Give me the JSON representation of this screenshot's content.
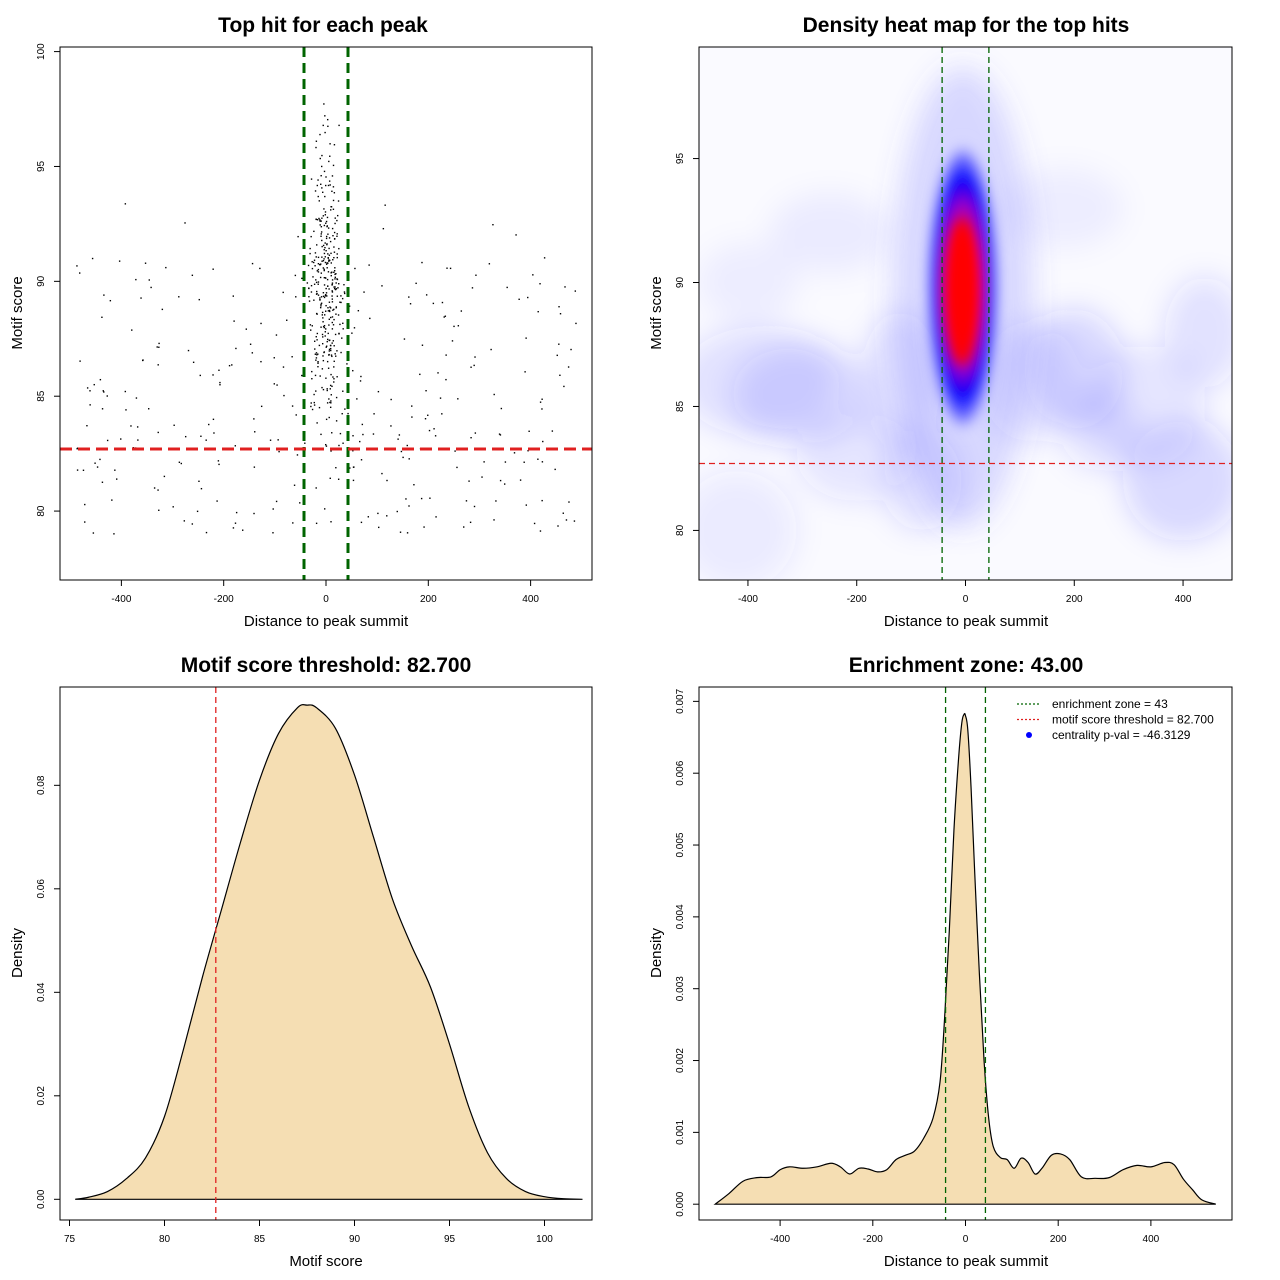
{
  "chart_data": [
    {
      "id": "scatter",
      "type": "scatter",
      "title": "Top hit for each peak",
      "xlabel": "Distance to peak summit",
      "ylabel": "Motif score",
      "xlim": [
        -520,
        520
      ],
      "ylim": [
        77,
        100.2
      ],
      "xticks": [
        -400,
        -200,
        0,
        200,
        400
      ],
      "yticks": [
        80,
        85,
        90,
        95,
        100
      ],
      "hline": 82.7,
      "vlines": [
        -43,
        43
      ],
      "hline_color": "#e02020",
      "vline_color": "#006400",
      "point_color": "#000000",
      "points_note": "Dense column of top hits around x=0 (score 84-99), sparser background across -500..500"
    },
    {
      "id": "heatmap",
      "type": "heatmap",
      "title": "Density heat map for the top hits",
      "xlabel": "Distance to peak summit",
      "ylabel": "Motif score",
      "xlim": [
        -490,
        490
      ],
      "ylim": [
        78,
        99.5
      ],
      "xticks": [
        -400,
        -200,
        0,
        200,
        400
      ],
      "yticks": [
        80,
        85,
        90,
        95
      ],
      "hline": 82.7,
      "vlines": [
        -43,
        43
      ],
      "colors": [
        "#ffffff",
        "#0000ff",
        "#ff0000"
      ],
      "peak": {
        "x": -5,
        "y": 89.8
      }
    },
    {
      "id": "score-density",
      "type": "area",
      "title": "Motif score threshold: 82.700",
      "xlabel": "Motif score",
      "ylabel": "Density",
      "xlim": [
        74.5,
        102.5
      ],
      "ylim": [
        -0.004,
        0.099
      ],
      "xticks": [
        75,
        80,
        85,
        90,
        95,
        100
      ],
      "yticks": [
        0.0,
        0.02,
        0.04,
        0.06,
        0.08
      ],
      "ytick_labels": [
        "0.00",
        "0.02",
        "0.04",
        "0.06",
        "0.08"
      ],
      "vline": 82.7,
      "fill": "#f5deb3",
      "x": [
        75.3,
        76,
        77,
        78,
        79,
        80,
        81,
        82,
        83,
        84,
        85,
        86,
        87,
        87.5,
        88,
        89,
        90,
        91,
        92,
        93,
        94,
        95,
        96,
        97,
        98,
        99,
        100,
        101,
        102
      ],
      "y": [
        0.0,
        0.0004,
        0.0015,
        0.004,
        0.008,
        0.016,
        0.029,
        0.043,
        0.056,
        0.069,
        0.081,
        0.09,
        0.095,
        0.0955,
        0.095,
        0.091,
        0.082,
        0.07,
        0.058,
        0.049,
        0.041,
        0.03,
        0.018,
        0.009,
        0.004,
        0.0015,
        0.0005,
        0.0001,
        0.0
      ]
    },
    {
      "id": "distance-density",
      "type": "area",
      "title": "Enrichment zone: 43.00",
      "xlabel": "Distance to peak summit",
      "ylabel": "Density",
      "xlim": [
        -575,
        575
      ],
      "ylim": [
        -0.00022,
        0.0072
      ],
      "xticks": [
        -400,
        -200,
        0,
        200,
        400
      ],
      "yticks": [
        0.0,
        0.001,
        0.002,
        0.003,
        0.004,
        0.005,
        0.006,
        0.007
      ],
      "ytick_labels": [
        "0.000",
        "0.001",
        "0.002",
        "0.003",
        "0.004",
        "0.005",
        "0.006",
        "0.007"
      ],
      "vlines": [
        -43,
        43
      ],
      "fill": "#f5deb3",
      "x": [
        -540,
        -510,
        -480,
        -450,
        -420,
        -400,
        -380,
        -350,
        -320,
        -290,
        -270,
        -250,
        -230,
        -210,
        -190,
        -170,
        -150,
        -130,
        -110,
        -90,
        -70,
        -55,
        -45,
        -35,
        -25,
        -15,
        -8,
        -3,
        0,
        5,
        12,
        20,
        30,
        40,
        50,
        60,
        75,
        90,
        105,
        120,
        135,
        150,
        165,
        185,
        205,
        225,
        250,
        280,
        310,
        340,
        370,
        400,
        430,
        450,
        470,
        490,
        510,
        540
      ],
      "y": [
        0.0,
        0.00015,
        0.00032,
        0.00037,
        0.00038,
        0.00048,
        0.00052,
        0.0005,
        0.00052,
        0.00057,
        0.00052,
        0.00042,
        0.0005,
        0.00049,
        0.00045,
        0.00048,
        0.00062,
        0.00068,
        0.00074,
        0.00092,
        0.0012,
        0.0017,
        0.0026,
        0.0038,
        0.0052,
        0.0062,
        0.0067,
        0.00682,
        0.0068,
        0.0066,
        0.0058,
        0.0046,
        0.0032,
        0.002,
        0.0012,
        0.0008,
        0.00065,
        0.00062,
        0.0005,
        0.00064,
        0.00058,
        0.00042,
        0.0005,
        0.00068,
        0.0007,
        0.00062,
        0.00038,
        0.00036,
        0.00037,
        0.00048,
        0.00054,
        0.00052,
        0.00058,
        0.00055,
        0.00035,
        0.0002,
        6e-05,
        0.0
      ],
      "legend": [
        {
          "label": "enrichment zone = 43",
          "color": "#006400",
          "kind": "line"
        },
        {
          "label": "motif score threshold = 82.700",
          "color": "#e02020",
          "kind": "line"
        },
        {
          "label": "centrality p-val = -46.3129",
          "color": "#0000ff",
          "kind": "point"
        }
      ]
    }
  ]
}
